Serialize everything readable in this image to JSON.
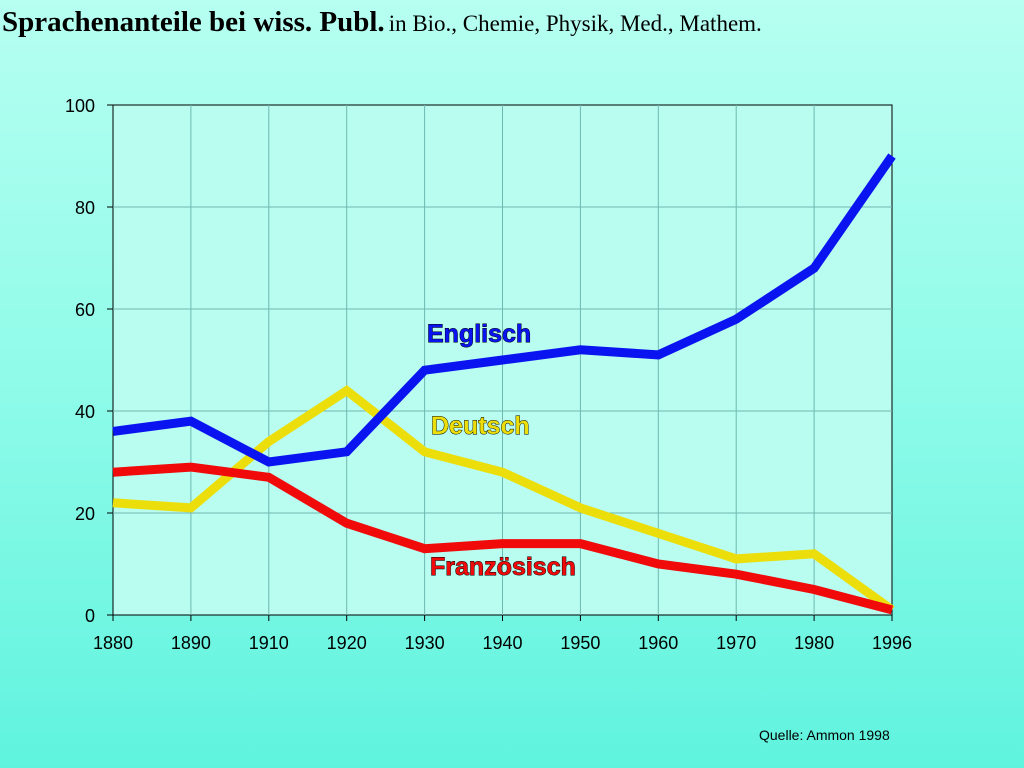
{
  "title": {
    "main": "Sprachenanteile bei wiss. Publ.",
    "subtitle": "in Bio., Chemie, Physik, Med., Mathem."
  },
  "source": "Quelle: Ammon 1998",
  "chart_data": {
    "type": "line",
    "categories": [
      "1880",
      "1890",
      "1910",
      "1920",
      "1930",
      "1940",
      "1950",
      "1960",
      "1970",
      "1980",
      "1996"
    ],
    "ylim": [
      0,
      100
    ],
    "yticks": [
      0,
      20,
      40,
      60,
      80,
      100
    ],
    "grid": true,
    "legend": "inline labels",
    "series": [
      {
        "name": "Englisch",
        "color": "#0a14f0",
        "values": [
          36,
          38,
          30,
          32,
          48,
          50,
          52,
          51,
          58,
          68,
          90
        ]
      },
      {
        "name": "Deutsch",
        "color": "#ecde0a",
        "values": [
          22,
          21,
          34,
          44,
          32,
          28,
          21,
          16,
          11,
          12,
          1
        ]
      },
      {
        "name": "Französisch",
        "color": "#f00a0a",
        "values": [
          28,
          29,
          27,
          18,
          13,
          14,
          14,
          10,
          8,
          5,
          1
        ]
      }
    ]
  }
}
